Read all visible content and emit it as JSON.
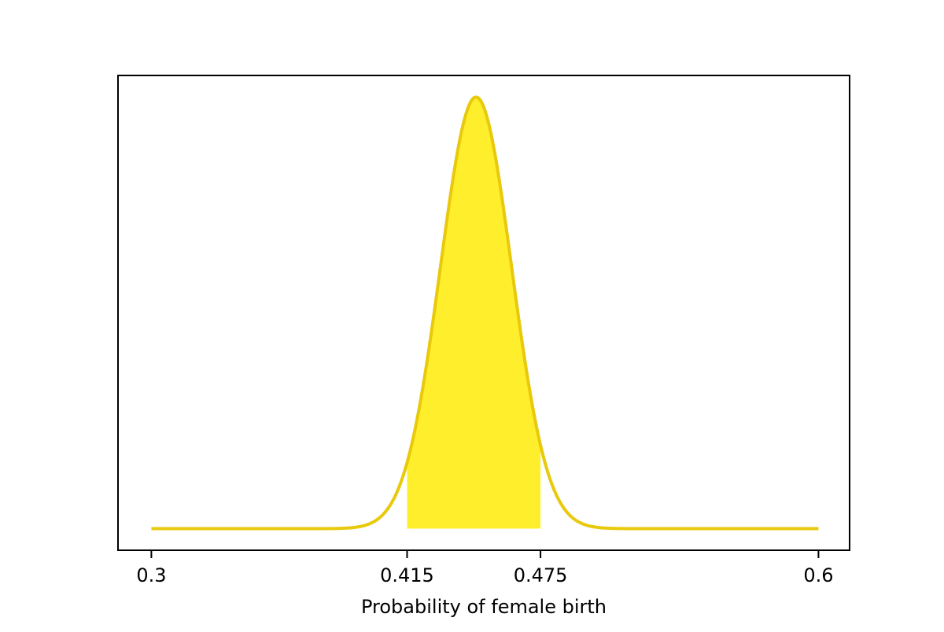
{
  "chart_data": {
    "type": "area",
    "title": "",
    "xlabel": "Probability of female birth",
    "ylabel": "",
    "xlim": [
      0.285,
      0.614
    ],
    "ylim": [
      -0.05,
      1.05
    ],
    "x_ticks": [
      0.3,
      0.415,
      0.475,
      0.6
    ],
    "x_tick_labels": [
      "0.3",
      "0.415",
      "0.475",
      "0.6"
    ],
    "y_ticks_visible": false,
    "grid": false,
    "legend": "none",
    "series": [
      {
        "kind": "density-curve",
        "distribution_shape": "approximately normal",
        "peak_x": 0.446,
        "peak_value": 1.0,
        "spread_sd": 0.016,
        "x_range": [
          0.3,
          0.6
        ],
        "color": "#e8c90c"
      }
    ],
    "shaded_interval": {
      "from": 0.415,
      "to": 0.475,
      "color": "#ffee2b"
    }
  }
}
